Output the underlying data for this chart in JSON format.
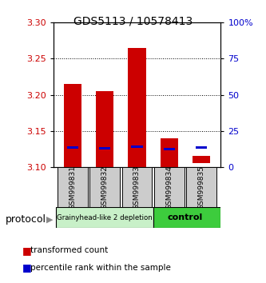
{
  "title": "GDS5113 / 10578413",
  "samples": [
    "GSM999831",
    "GSM999832",
    "GSM999833",
    "GSM999834",
    "GSM999835"
  ],
  "red_bottom": [
    3.1,
    3.1,
    3.1,
    3.1,
    3.105
  ],
  "red_top": [
    3.215,
    3.205,
    3.265,
    3.14,
    3.115
  ],
  "blue_values": [
    3.127,
    3.126,
    3.128,
    3.125,
    3.127
  ],
  "ylim_left": [
    3.1,
    3.3
  ],
  "ylim_right": [
    0,
    100
  ],
  "yticks_left": [
    3.1,
    3.15,
    3.2,
    3.25,
    3.3
  ],
  "yticks_right": [
    0,
    25,
    50,
    75,
    100
  ],
  "ytick_labels_right": [
    "0",
    "25",
    "50",
    "75",
    "100%"
  ],
  "group1_label": "Grainyhead-like 2 depletion",
  "group2_label": "control",
  "group1_color": "#c8f0c8",
  "group2_color": "#3dcc3d",
  "bar_color_red": "#cc0000",
  "bar_color_blue": "#0000cc",
  "bar_width": 0.55,
  "protocol_label": "protocol",
  "legend_red": "transformed count",
  "legend_blue": "percentile rank within the sample",
  "tick_label_color_left": "#cc0000",
  "tick_label_color_right": "#0000cc",
  "sample_box_color": "#cccccc",
  "title_fontsize": 10,
  "tick_fontsize": 8,
  "sample_fontsize": 6.5,
  "legend_fontsize": 7.5,
  "protocol_fontsize": 9
}
